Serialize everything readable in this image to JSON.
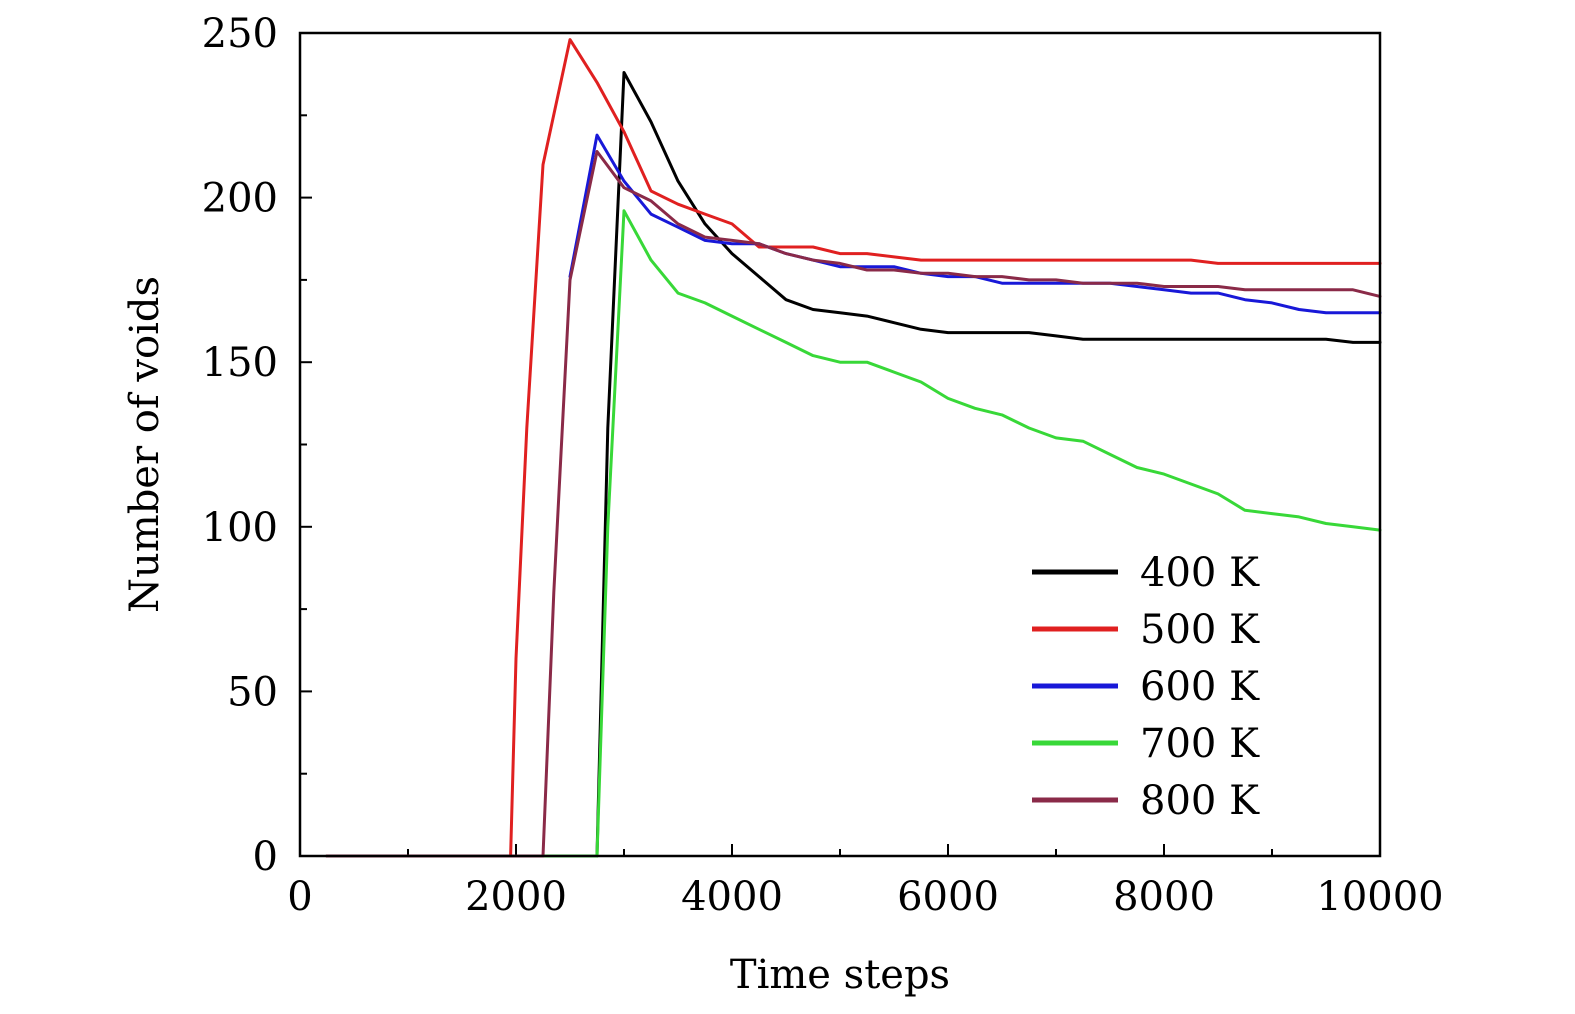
{
  "chart_data": {
    "type": "line",
    "xlabel": "Time steps",
    "ylabel": "Number of voids",
    "xlim": [
      0,
      10000
    ],
    "ylim": [
      0,
      250
    ],
    "x_ticks": [
      0,
      2000,
      4000,
      6000,
      8000,
      10000
    ],
    "x_tick_labels": [
      "0",
      "2000",
      "4000",
      "6000",
      "8000",
      "10000"
    ],
    "x_minor_ticks": [
      1000,
      3000,
      5000,
      7000,
      9000
    ],
    "y_ticks": [
      0,
      50,
      100,
      150,
      200,
      250
    ],
    "y_tick_labels": [
      "0",
      "50",
      "100",
      "150",
      "200",
      "250"
    ],
    "y_minor_ticks": [
      25,
      75,
      125,
      175,
      225
    ],
    "grid": false,
    "legend_position": "lower-right",
    "series": [
      {
        "name": "400 K",
        "color": "#000000",
        "x": [
          250,
          1000,
          2000,
          2750,
          2850,
          3000,
          3250,
          3500,
          3750,
          4000,
          4250,
          4500,
          4750,
          5000,
          5250,
          5500,
          5750,
          6000,
          6500,
          6750,
          7000,
          7250,
          7500,
          8000,
          8500,
          9000,
          9500,
          9750,
          10000
        ],
        "y": [
          0,
          0,
          0,
          0,
          130,
          238,
          223,
          205,
          192,
          183,
          176,
          169,
          166,
          165,
          164,
          162,
          160,
          159,
          159,
          159,
          158,
          157,
          157,
          157,
          157,
          157,
          157,
          156,
          156
        ]
      },
      {
        "name": "500 K",
        "color": "#e02020",
        "x": [
          250,
          1000,
          1950,
          2000,
          2100,
          2250,
          2500,
          2750,
          3000,
          3250,
          3500,
          3750,
          4000,
          4250,
          4500,
          4750,
          5000,
          5250,
          5500,
          5750,
          6000,
          6500,
          7000,
          7500,
          8000,
          8250,
          8500,
          9000,
          9500,
          10000
        ],
        "y": [
          0,
          0,
          0,
          60,
          130,
          210,
          248,
          235,
          220,
          202,
          198,
          195,
          192,
          185,
          185,
          185,
          183,
          183,
          182,
          181,
          181,
          181,
          181,
          181,
          181,
          181,
          180,
          180,
          180,
          180
        ]
      },
      {
        "name": "600 K",
        "color": "#1818d8",
        "x": [
          2500,
          2750,
          3000,
          3250,
          3500,
          3750,
          4000,
          4250,
          4500,
          4750,
          5000,
          5250,
          5500,
          5750,
          6000,
          6250,
          6500,
          6750,
          7000,
          7250,
          7500,
          7750,
          8000,
          8250,
          8500,
          8750,
          9000,
          9250,
          9500,
          9750,
          10000
        ],
        "y": [
          176,
          219,
          205,
          195,
          191,
          187,
          186,
          186,
          183,
          181,
          179,
          179,
          179,
          177,
          176,
          176,
          174,
          174,
          174,
          174,
          174,
          173,
          172,
          171,
          171,
          169,
          168,
          166,
          165,
          165,
          165
        ]
      },
      {
        "name": "700 K",
        "color": "#38d838",
        "x": [
          2250,
          2500,
          2750,
          2850,
          3000,
          3250,
          3500,
          3750,
          4000,
          4250,
          4500,
          4750,
          5000,
          5250,
          5500,
          5750,
          6000,
          6250,
          6500,
          6750,
          7000,
          7250,
          7500,
          7750,
          8000,
          8250,
          8500,
          8750,
          9000,
          9250,
          9500,
          9750,
          10000
        ],
        "y": [
          0,
          0,
          0,
          100,
          196,
          181,
          171,
          168,
          164,
          160,
          156,
          152,
          150,
          150,
          147,
          144,
          139,
          136,
          134,
          130,
          127,
          126,
          122,
          118,
          116,
          113,
          110,
          105,
          104,
          103,
          101,
          100,
          99
        ]
      },
      {
        "name": "800 K",
        "color": "#8a2a48",
        "x": [
          250,
          1000,
          2000,
          2250,
          2350,
          2500,
          2750,
          3000,
          3250,
          3500,
          3750,
          4000,
          4250,
          4500,
          4750,
          5000,
          5250,
          5500,
          5750,
          6000,
          6250,
          6500,
          6750,
          7000,
          7250,
          7500,
          7750,
          8000,
          8250,
          8500,
          8750,
          9000,
          9250,
          9500,
          9750,
          10000
        ],
        "y": [
          0,
          0,
          0,
          0,
          80,
          175,
          214,
          203,
          199,
          192,
          188,
          187,
          186,
          183,
          181,
          180,
          178,
          178,
          177,
          177,
          176,
          176,
          175,
          175,
          174,
          174,
          174,
          173,
          173,
          173,
          172,
          172,
          172,
          172,
          172,
          170
        ]
      }
    ]
  }
}
